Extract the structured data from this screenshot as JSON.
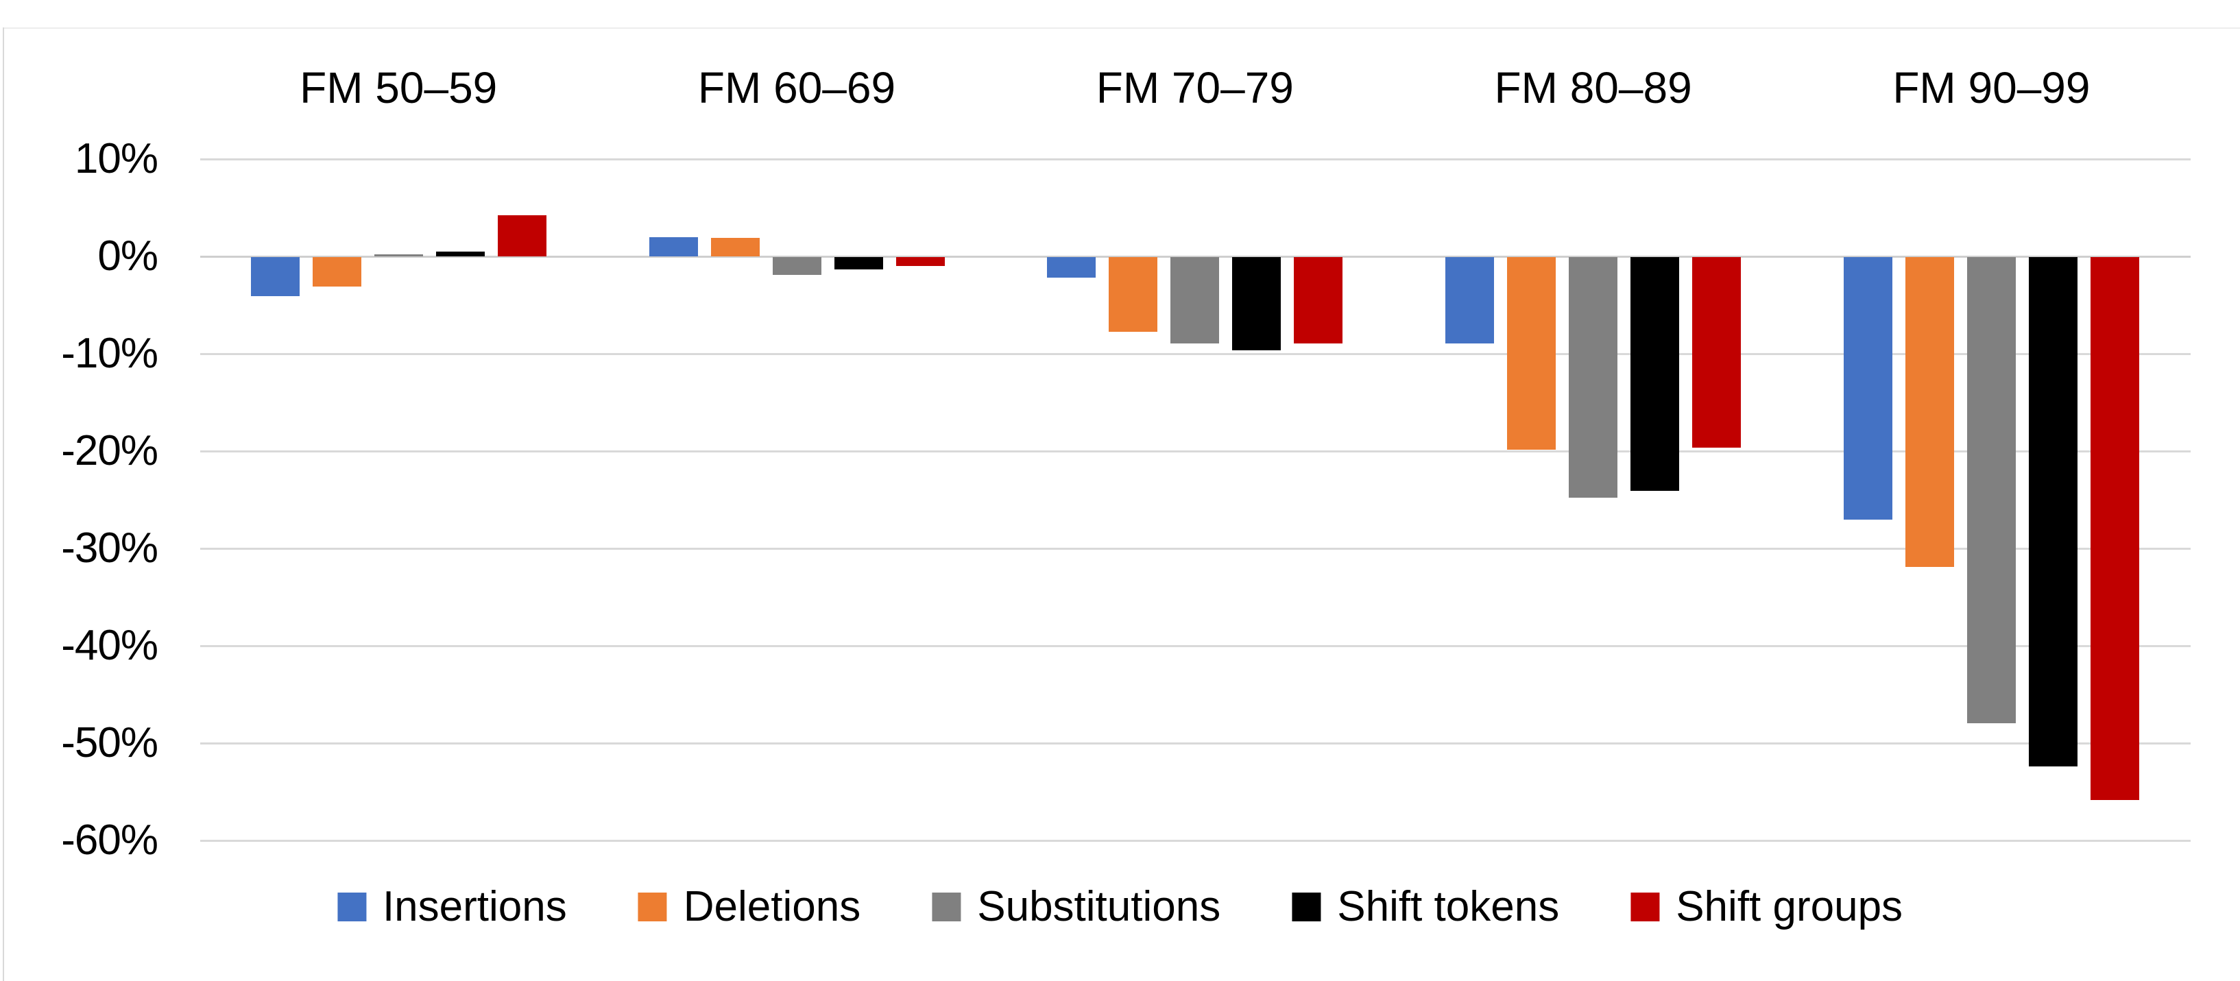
{
  "chart_data": {
    "type": "bar",
    "title": "",
    "xlabel": "",
    "ylabel": "",
    "categories": [
      "FM 50–59",
      "FM 60–69",
      "FM 70–79",
      "FM 80–89",
      "FM 90–99"
    ],
    "series": [
      {
        "name": "Insertions",
        "color": "#4472C4",
        "values": [
          -4.0,
          2.0,
          -2.1,
          -8.9,
          -27.0
        ]
      },
      {
        "name": "Deletions",
        "color": "#ED7D31",
        "values": [
          -3.0,
          1.9,
          -7.7,
          -19.8,
          -31.8
        ]
      },
      {
        "name": "Substitutions",
        "color": "#808080",
        "values": [
          0.2,
          -1.8,
          -8.9,
          -24.7,
          -47.9
        ]
      },
      {
        "name": "Shift tokens",
        "color": "#000000",
        "values": [
          0.5,
          -1.3,
          -9.6,
          -24.0,
          -52.3
        ]
      },
      {
        "name": "Shift groups",
        "color": "#C00000",
        "values": [
          4.2,
          -0.9,
          -8.9,
          -19.6,
          -55.8
        ]
      }
    ],
    "y_axis": {
      "min": -60,
      "max": 10,
      "tick_step": 10,
      "tick_labels": [
        "10%",
        "0%",
        "-10%",
        "-20%",
        "-30%",
        "-40%",
        "-50%",
        "-60%"
      ],
      "tick_values": [
        10,
        0,
        -10,
        -20,
        -30,
        -40,
        -50,
        -60
      ]
    },
    "grid": true,
    "legend_position": "bottom",
    "unit": "%"
  },
  "colors": {
    "background": "#FFFFFF",
    "gridline": "#D9D9D9",
    "zero_line": "#CFCFCF",
    "text": "#000000",
    "edge_line": "#D9D9D9"
  }
}
